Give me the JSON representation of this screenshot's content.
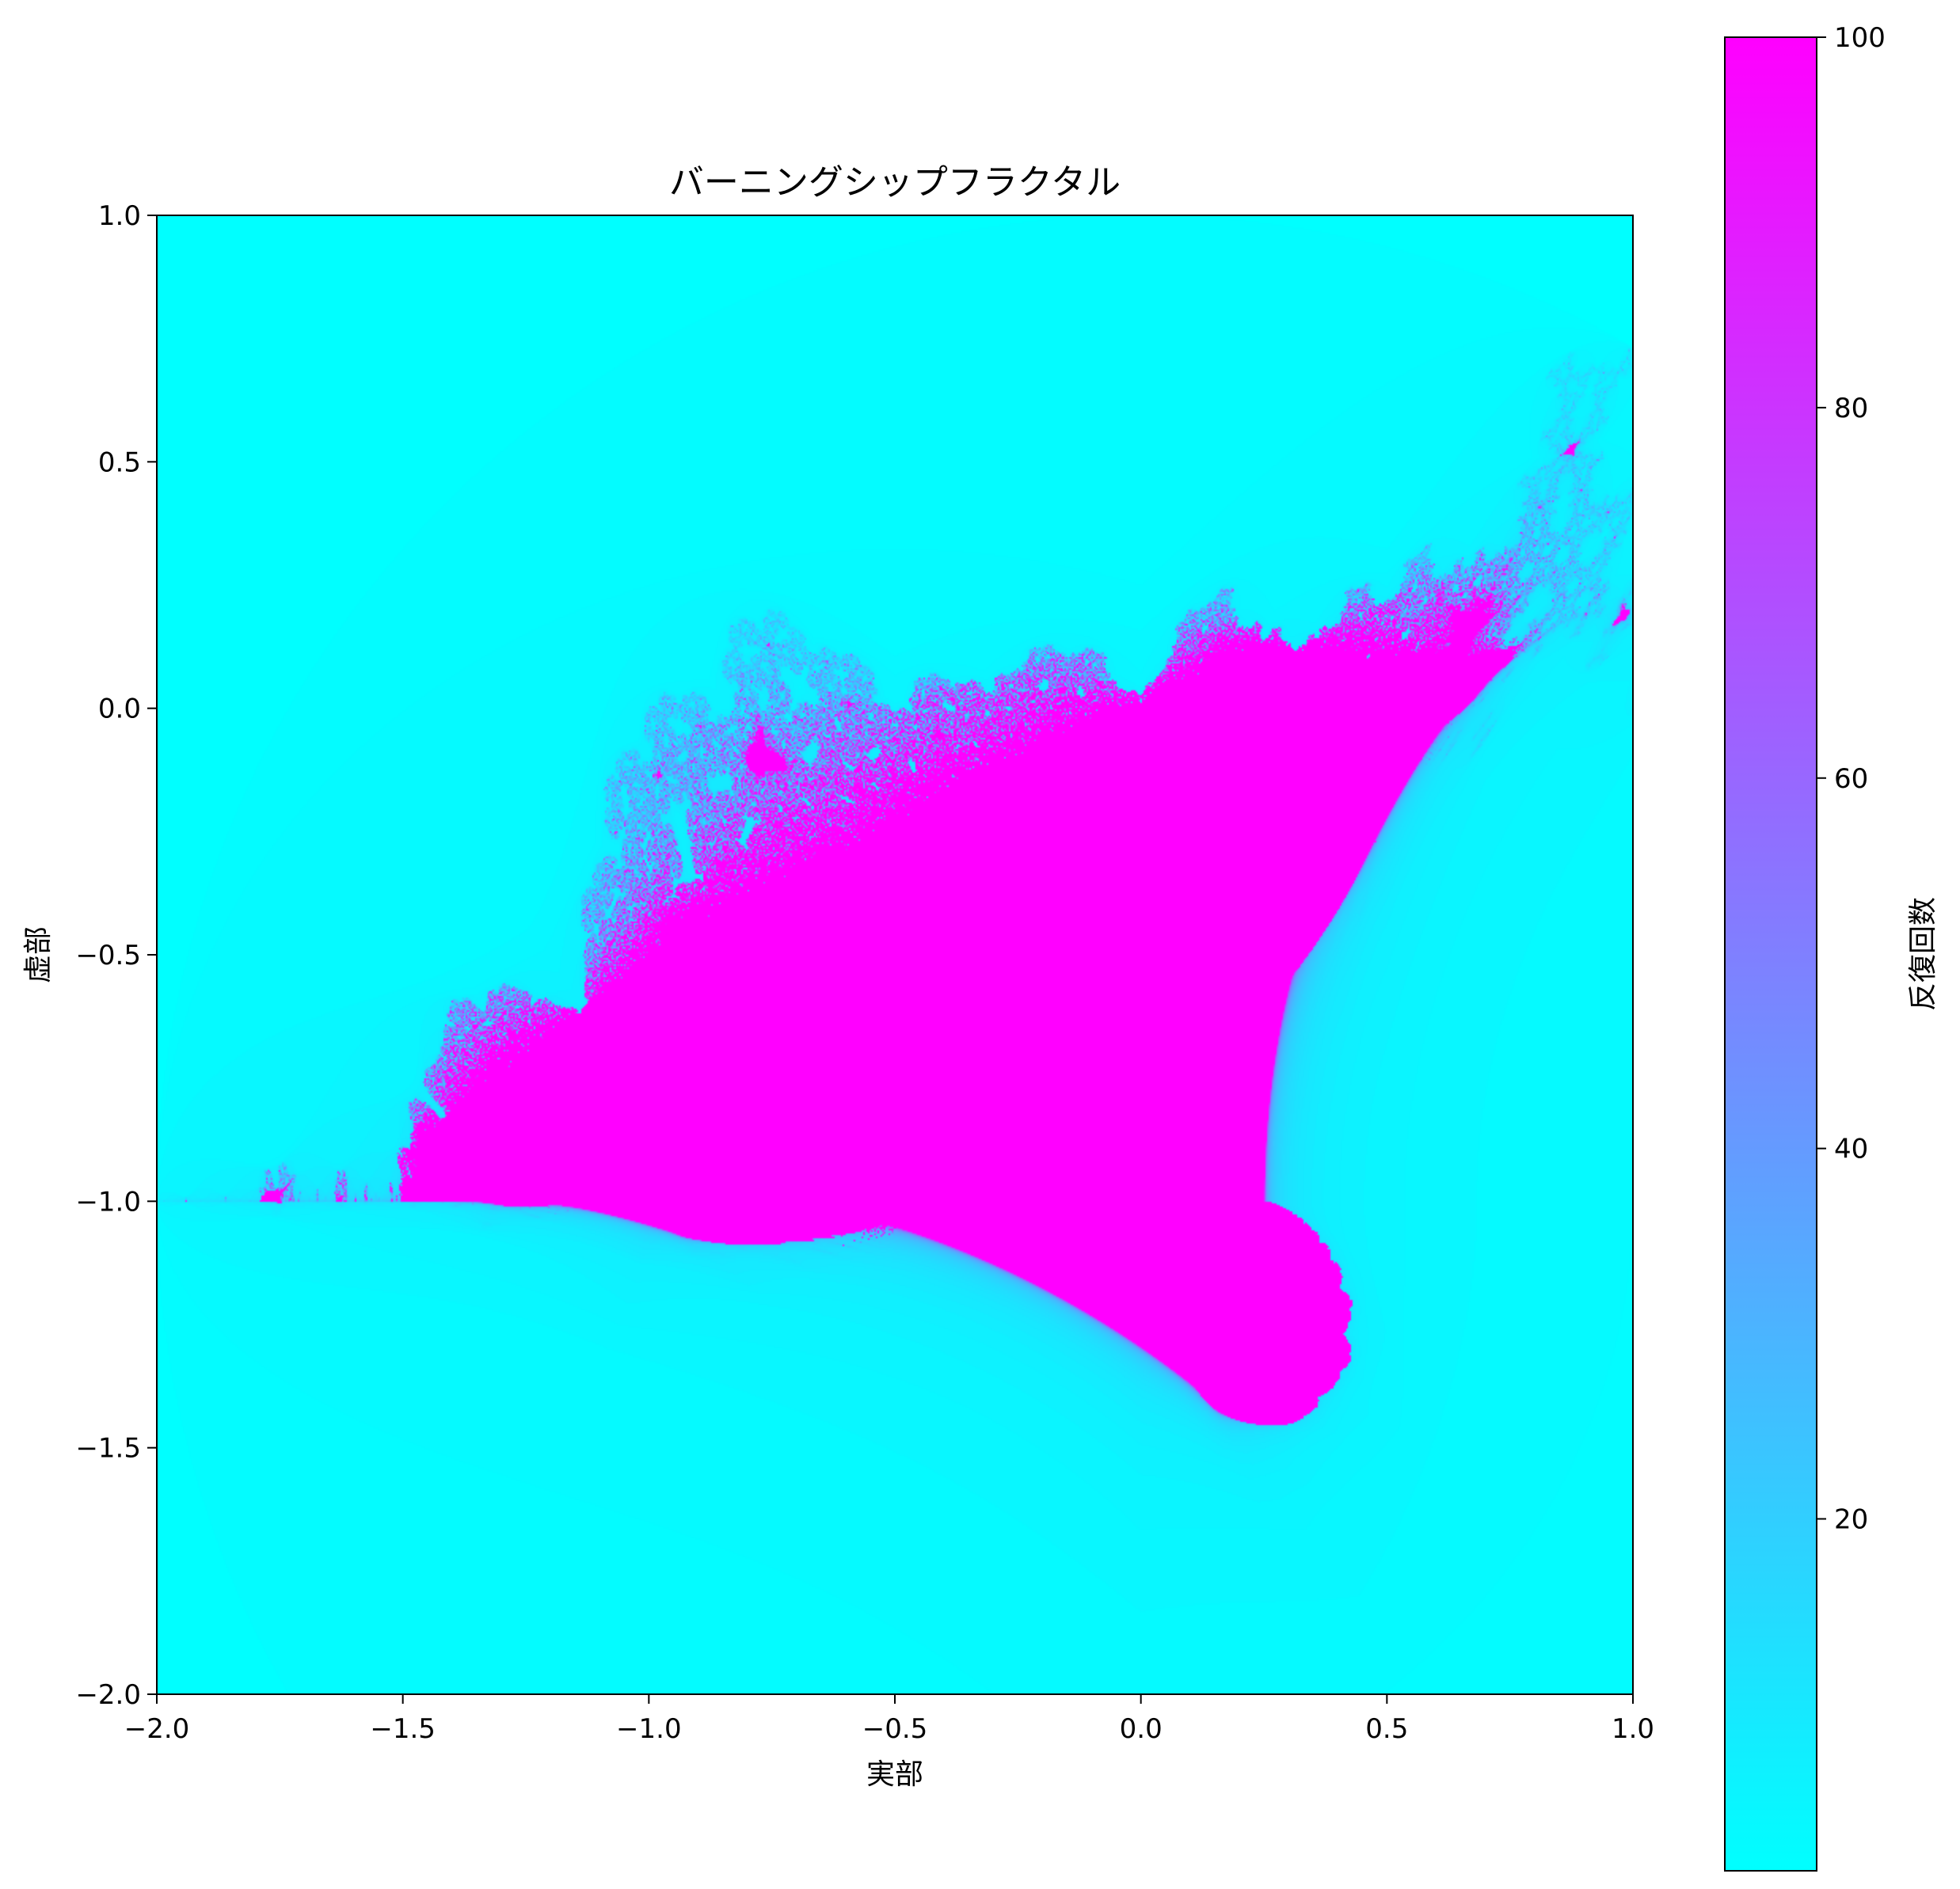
{
  "chart_data": {
    "type": "heatmap",
    "title": "バーニングシップフラクタル",
    "xlabel": "実部",
    "ylabel": "虚部",
    "xlim": [
      -2.0,
      1.0
    ],
    "ylim": [
      -2.0,
      1.0
    ],
    "x_ticks": [
      "−2.0",
      "−1.5",
      "−1.0",
      "−0.5",
      "0.0",
      "0.5",
      "1.0"
    ],
    "y_ticks": [
      "−2.0",
      "−1.5",
      "−1.0",
      "−0.5",
      "0.0",
      "0.5",
      "1.0"
    ],
    "x_tick_values": [
      -2.0,
      -1.5,
      -1.0,
      -0.5,
      0.0,
      0.5,
      1.0
    ],
    "y_tick_values": [
      -2.0,
      -1.5,
      -1.0,
      -0.5,
      0.0,
      0.5,
      1.0
    ],
    "colormap": "cool",
    "colormap_low_color": "#00ffff",
    "colormap_high_color": "#ff00ff",
    "max_iterations": 100,
    "colorbar": {
      "label": "反復回数",
      "range": [
        1,
        100
      ],
      "ticks": [
        "20",
        "40",
        "60",
        "80",
        "100"
      ],
      "tick_values": [
        20,
        40,
        60,
        80,
        100
      ]
    },
    "grid": false
  }
}
